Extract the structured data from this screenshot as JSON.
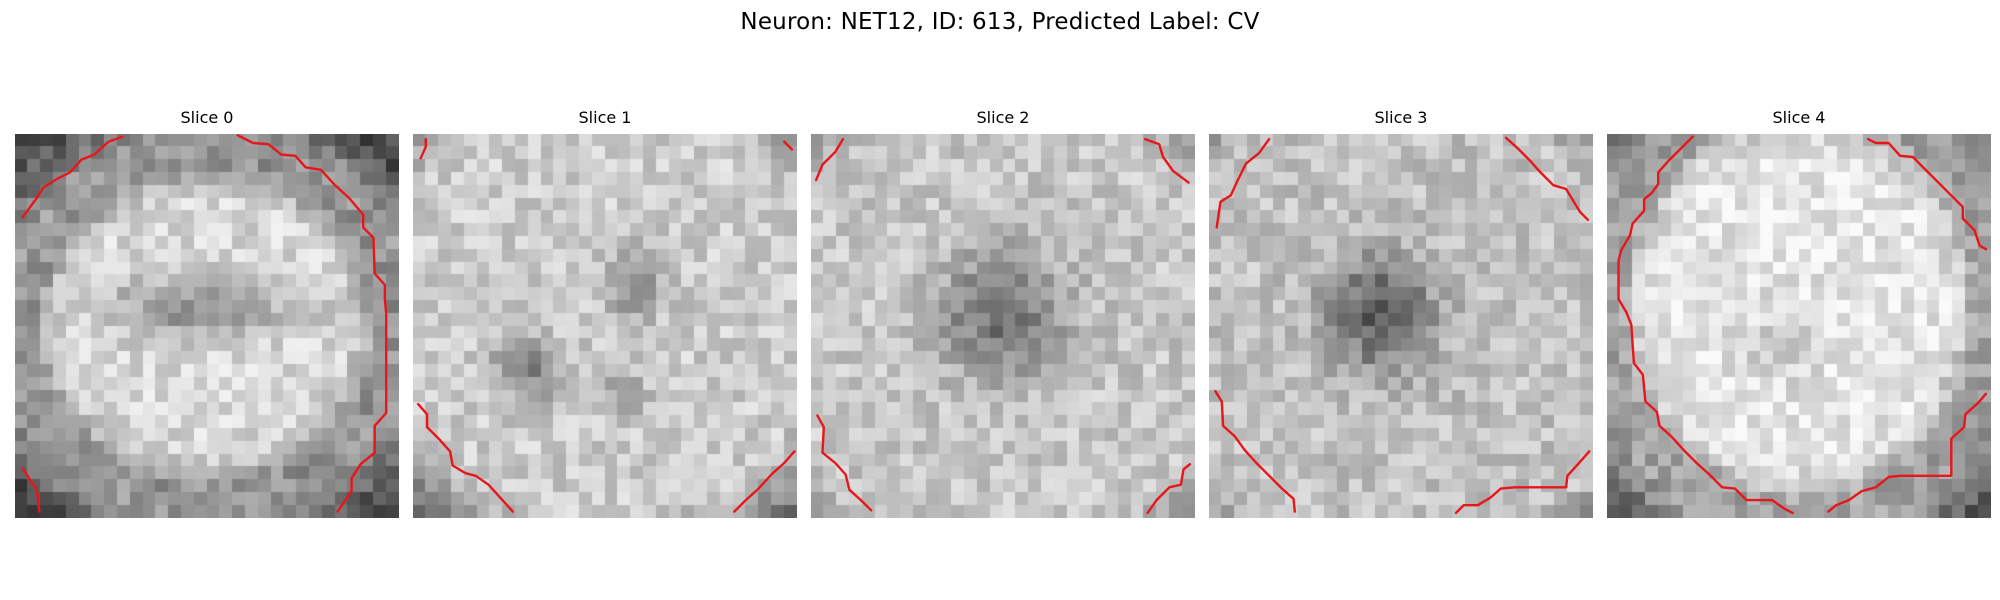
{
  "figure": {
    "title": "Neuron: NET12, ID: 613, Predicted Label: CV"
  },
  "grid_size": 30,
  "contour_color": "#e8161b",
  "panels": [
    {
      "title": "Slice 0",
      "image": "grayscale-microscopy-slice",
      "contours": [
        [
          [
            0.6,
            6.5
          ],
          [
            1.7,
            5.0
          ],
          [
            2.2,
            4.2
          ],
          [
            3.3,
            3.5
          ],
          [
            4.3,
            3.0
          ],
          [
            5.2,
            2.0
          ],
          [
            6.2,
            1.6
          ],
          [
            7.3,
            0.6
          ],
          [
            8.4,
            0.2
          ]
        ],
        [
          [
            17.4,
            0.1
          ],
          [
            18.6,
            0.7
          ],
          [
            19.8,
            0.8
          ],
          [
            20.8,
            1.6
          ],
          [
            21.9,
            1.7
          ],
          [
            22.7,
            2.6
          ],
          [
            23.9,
            2.8
          ],
          [
            25.0,
            4.0
          ],
          [
            26.1,
            5.0
          ],
          [
            27.2,
            6.3
          ],
          [
            27.2,
            7.3
          ],
          [
            28.0,
            8.1
          ],
          [
            28.1,
            10.9
          ],
          [
            28.9,
            11.8
          ],
          [
            28.9,
            13.0
          ],
          [
            29.0,
            14.0
          ],
          [
            29.0,
            21.8
          ],
          [
            28.1,
            22.8
          ],
          [
            28.1,
            24.9
          ],
          [
            27.0,
            25.8
          ],
          [
            26.3,
            26.9
          ],
          [
            26.3,
            27.9
          ],
          [
            25.2,
            29.5
          ]
        ],
        [
          [
            0.6,
            26.1
          ],
          [
            1.1,
            26.9
          ],
          [
            1.7,
            27.8
          ],
          [
            1.9,
            29.5
          ]
        ]
      ]
    },
    {
      "title": "Slice 1",
      "image": "grayscale-microscopy-slice",
      "contours": [
        [
          [
            0.6,
            1.9
          ],
          [
            1.0,
            1.0
          ],
          [
            1.0,
            0.4
          ]
        ],
        [
          [
            29.0,
            0.6
          ],
          [
            29.6,
            1.2
          ]
        ],
        [
          [
            0.4,
            21.1
          ],
          [
            1.1,
            21.9
          ],
          [
            1.1,
            22.9
          ],
          [
            2.0,
            23.8
          ],
          [
            2.9,
            24.8
          ],
          [
            3.1,
            25.9
          ],
          [
            4.1,
            26.5
          ],
          [
            4.9,
            26.7
          ],
          [
            5.9,
            27.4
          ],
          [
            6.9,
            28.5
          ],
          [
            7.8,
            29.5
          ]
        ],
        [
          [
            25.1,
            29.5
          ],
          [
            26.0,
            28.6
          ],
          [
            27.0,
            27.7
          ],
          [
            28.0,
            26.6
          ],
          [
            29.0,
            25.7
          ],
          [
            29.8,
            24.8
          ]
        ]
      ]
    },
    {
      "title": "Slice 2",
      "image": "grayscale-microscopy-slice",
      "contours": [
        [
          [
            0.4,
            3.6
          ],
          [
            0.9,
            2.4
          ],
          [
            1.9,
            1.4
          ],
          [
            2.5,
            0.4
          ]
        ],
        [
          [
            26.1,
            0.4
          ],
          [
            27.2,
            0.8
          ],
          [
            27.5,
            1.8
          ],
          [
            28.3,
            2.9
          ],
          [
            29.5,
            3.8
          ]
        ],
        [
          [
            0.5,
            22.0
          ],
          [
            1.0,
            22.9
          ],
          [
            0.9,
            24.9
          ],
          [
            1.9,
            25.7
          ],
          [
            2.7,
            26.6
          ],
          [
            3.0,
            27.8
          ],
          [
            3.9,
            28.6
          ],
          [
            4.7,
            29.4
          ]
        ],
        [
          [
            26.3,
            29.6
          ],
          [
            27.0,
            28.6
          ],
          [
            28.0,
            27.6
          ],
          [
            28.9,
            27.4
          ],
          [
            29.1,
            26.2
          ],
          [
            29.6,
            25.8
          ]
        ]
      ]
    },
    {
      "title": "Slice 3",
      "image": "grayscale-microscopy-slice",
      "contours": [
        [
          [
            0.6,
            7.3
          ],
          [
            0.9,
            5.3
          ],
          [
            1.7,
            4.8
          ],
          [
            2.2,
            3.7
          ],
          [
            2.9,
            2.3
          ],
          [
            3.9,
            1.5
          ],
          [
            4.7,
            0.4
          ]
        ],
        [
          [
            23.2,
            0.3
          ],
          [
            24.1,
            1.1
          ],
          [
            25.0,
            2.0
          ],
          [
            25.9,
            3.0
          ],
          [
            26.9,
            4.0
          ],
          [
            27.9,
            4.3
          ],
          [
            28.5,
            5.3
          ],
          [
            29.0,
            6.1
          ],
          [
            29.6,
            6.7
          ]
        ],
        [
          [
            0.5,
            20.1
          ],
          [
            1.0,
            20.9
          ],
          [
            1.1,
            22.8
          ],
          [
            2.0,
            23.6
          ],
          [
            2.8,
            24.7
          ],
          [
            3.7,
            25.7
          ],
          [
            4.7,
            26.7
          ],
          [
            5.7,
            27.7
          ],
          [
            6.6,
            28.5
          ],
          [
            6.7,
            29.5
          ]
        ],
        [
          [
            19.3,
            29.6
          ],
          [
            19.9,
            29.0
          ],
          [
            21.0,
            29.0
          ],
          [
            22.0,
            28.4
          ],
          [
            22.8,
            27.7
          ],
          [
            23.9,
            27.6
          ],
          [
            24.9,
            27.6
          ],
          [
            26.0,
            27.6
          ],
          [
            27.0,
            27.6
          ],
          [
            27.9,
            27.6
          ],
          [
            28.0,
            26.7
          ],
          [
            29.0,
            25.6
          ],
          [
            29.7,
            24.8
          ]
        ]
      ]
    },
    {
      "title": "Slice 4",
      "image": "grayscale-microscopy-slice",
      "contours": [
        [
          [
            6.7,
            0.2
          ],
          [
            5.7,
            1.2
          ],
          [
            4.9,
            2.0
          ],
          [
            4.0,
            3.0
          ],
          [
            4.0,
            3.9
          ],
          [
            3.5,
            4.6
          ],
          [
            2.9,
            5.1
          ],
          [
            2.9,
            6.0
          ],
          [
            2.0,
            7.0
          ],
          [
            1.8,
            7.9
          ],
          [
            1.1,
            9.1
          ],
          [
            0.9,
            9.9
          ],
          [
            0.9,
            12.9
          ],
          [
            1.5,
            13.9
          ],
          [
            1.9,
            14.9
          ],
          [
            2.1,
            17.9
          ],
          [
            2.8,
            18.8
          ],
          [
            3.0,
            20.9
          ],
          [
            3.9,
            21.7
          ],
          [
            4.1,
            22.8
          ],
          [
            5.0,
            23.6
          ],
          [
            6.0,
            24.7
          ],
          [
            7.0,
            25.7
          ],
          [
            8.0,
            26.6
          ],
          [
            9.0,
            27.6
          ],
          [
            10.0,
            27.7
          ],
          [
            10.9,
            28.6
          ],
          [
            12.9,
            28.6
          ],
          [
            13.9,
            29.3
          ],
          [
            14.5,
            29.6
          ]
        ],
        [
          [
            20.4,
            0.4
          ],
          [
            21.0,
            0.7
          ],
          [
            22.0,
            0.7
          ],
          [
            22.9,
            1.7
          ],
          [
            23.9,
            1.8
          ],
          [
            24.8,
            2.7
          ],
          [
            25.8,
            3.7
          ],
          [
            26.8,
            4.7
          ],
          [
            27.8,
            5.7
          ],
          [
            27.8,
            6.6
          ],
          [
            28.7,
            7.5
          ],
          [
            29.1,
            8.7
          ],
          [
            29.6,
            9.0
          ]
        ],
        [
          [
            17.3,
            29.5
          ],
          [
            17.9,
            29.0
          ],
          [
            18.9,
            28.6
          ],
          [
            19.9,
            27.9
          ],
          [
            21.0,
            27.6
          ],
          [
            22.0,
            26.8
          ],
          [
            22.9,
            26.7
          ],
          [
            23.9,
            26.7
          ],
          [
            25.0,
            26.7
          ],
          [
            26.9,
            26.7
          ],
          [
            26.9,
            23.8
          ],
          [
            27.9,
            22.9
          ],
          [
            28.0,
            21.9
          ],
          [
            29.0,
            21.0
          ],
          [
            29.6,
            20.3
          ]
        ]
      ]
    }
  ]
}
